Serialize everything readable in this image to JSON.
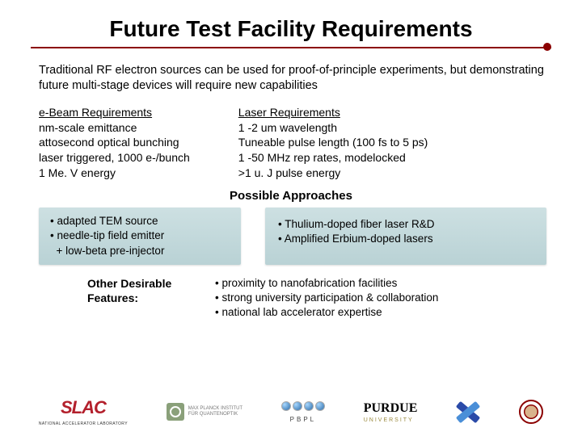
{
  "title": "Future Test Facility Requirements",
  "intro": "Traditional RF electron sources can be used for proof-of-principle experiments, but demonstrating future multi-stage devices will require new capabilities",
  "ebeam": {
    "head": "e-Beam Requirements",
    "l1": "nm-scale emittance",
    "l2": "attosecond optical bunching",
    "l3": "laser triggered, 1000 e-/bunch",
    "l4": "1 Me. V energy"
  },
  "laser": {
    "head": "Laser Requirements",
    "l1": "1 -2 um wavelength",
    "l2": "Tuneable pulse length (100 fs to 5 ps)",
    "l3": "1 -50 MHz rep rates, modelocked",
    "l4": ">1 u. J pulse energy"
  },
  "approaches_head": "Possible Approaches",
  "approach_left": {
    "l1": "• adapted TEM source",
    "l2": "• needle-tip field emitter",
    "l3": "  + low-beta pre-injector"
  },
  "approach_right": {
    "l1": "• Thulium-doped fiber laser R&D",
    "l2": "• Amplified Erbium-doped lasers"
  },
  "features_label_1": "Other Desirable",
  "features_label_2": "Features:",
  "features": {
    "l1": "• proximity to nanofabrication facilities",
    "l2": "• strong university participation & collaboration",
    "l3": "• national lab accelerator expertise"
  },
  "logos": {
    "slac": "SLAC",
    "slac_sub": "NATIONAL ACCELERATOR LABORATORY",
    "mpq1": "MAX PLANCK INSTITUT",
    "mpq2": "FÜR QUANTENOPTIK",
    "pbpl": "PBPL",
    "purdue": "PURDUE",
    "purdue_sub": "UNIVERSITY"
  },
  "colors": {
    "rule": "#8b0000",
    "box_bg_top": "#cde0e2",
    "box_bg_bot": "#b9d2d5",
    "slac": "#b3202c",
    "purdue_gold": "#9b8a3e"
  }
}
